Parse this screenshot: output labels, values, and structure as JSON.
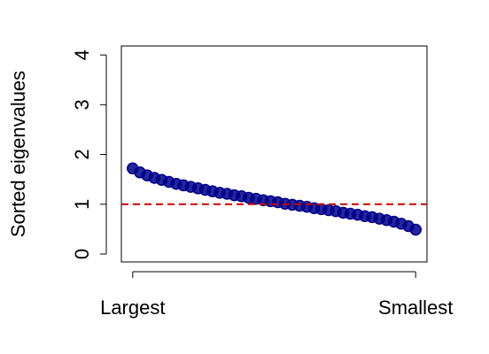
{
  "chart_data": {
    "type": "scatter",
    "ylabel": "Sorted eigenvalues",
    "x": [
      1,
      2,
      3,
      4,
      5,
      6,
      7,
      8,
      9,
      10,
      11,
      12,
      13,
      14,
      15,
      16,
      17,
      18,
      19,
      20,
      21,
      22,
      23,
      24,
      25,
      26,
      27,
      28,
      29,
      30,
      31,
      32,
      33,
      34,
      35,
      36,
      37,
      38,
      39,
      40
    ],
    "series": [
      {
        "color": "#00008b",
        "values": [
          1.72,
          1.64,
          1.58,
          1.53,
          1.49,
          1.45,
          1.41,
          1.38,
          1.35,
          1.32,
          1.29,
          1.26,
          1.23,
          1.21,
          1.18,
          1.16,
          1.13,
          1.11,
          1.08,
          1.06,
          1.04,
          1.01,
          0.99,
          0.97,
          0.95,
          0.92,
          0.9,
          0.88,
          0.86,
          0.83,
          0.81,
          0.79,
          0.76,
          0.74,
          0.71,
          0.68,
          0.65,
          0.61,
          0.56,
          0.49
        ]
      }
    ],
    "xlim": [
      -0.56,
      41.56
    ],
    "xticks": [
      {
        "value": 1,
        "label": "Largest"
      },
      {
        "value": 40,
        "label": "Smallest"
      }
    ],
    "ylim": [
      -0.16,
      4.18
    ],
    "yticks": [
      0,
      1,
      2,
      3,
      4
    ],
    "hline": {
      "value": 1,
      "color": "#cc0000"
    }
  }
}
